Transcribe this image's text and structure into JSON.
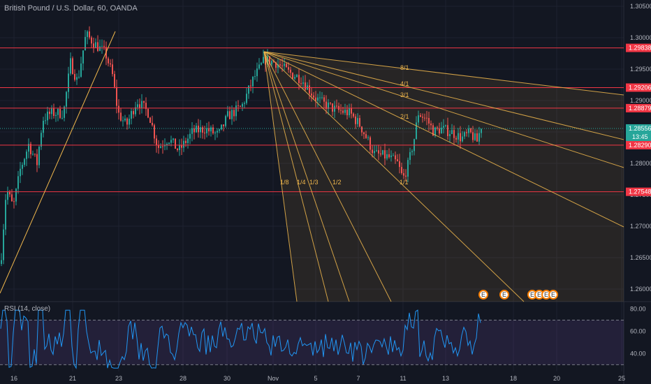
{
  "header": {
    "symbol_title": "British Pound / U.S. Dollar, 60, OANDA"
  },
  "rsi": {
    "title": "RSI (14, close)",
    "levels": [
      {
        "label": "80.00",
        "value": 80
      },
      {
        "label": "60.00",
        "value": 60
      },
      {
        "label": "40.00",
        "value": 40
      }
    ],
    "upper_band": 70,
    "lower_band": 30
  },
  "colors": {
    "background": "#131722",
    "grid": "#1e2230",
    "up_candle": "#26a69a",
    "down_candle": "#ef5350",
    "horizontal_level": "#f23645",
    "fan": "#f0b74c",
    "rsi_line": "#2196f3",
    "rsi_band": "#7e57c2"
  },
  "chart_data": {
    "type": "candlestick",
    "title": "British Pound / U.S. Dollar, 60, OANDA",
    "ylim": [
      1.258,
      1.306
    ],
    "price_ticks": [
      {
        "label": "1.30500",
        "value": 1.305
      },
      {
        "label": "1.30000",
        "value": 1.3
      },
      {
        "label": "1.29500",
        "value": 1.295
      },
      {
        "label": "1.29000",
        "value": 1.29
      },
      {
        "label": "1.28500",
        "value": 1.285
      },
      {
        "label": "1.28000",
        "value": 1.28
      },
      {
        "label": "1.27500",
        "value": 1.275
      },
      {
        "label": "1.27000",
        "value": 1.27
      },
      {
        "label": "1.26500",
        "value": 1.265
      },
      {
        "label": "1.26000",
        "value": 1.26
      }
    ],
    "date_ticks": [
      "16",
      "21",
      "23",
      "28",
      "30",
      "Nov",
      "5",
      "7",
      "11",
      "13",
      "18",
      "20",
      "25"
    ],
    "horizontal_levels": [
      {
        "label": "1.29838",
        "value": 1.29838
      },
      {
        "label": "1.29206",
        "value": 1.29206
      },
      {
        "label": "1.28879",
        "value": 1.28879
      },
      {
        "label": "1.28290",
        "value": 1.2829
      },
      {
        "label": "1.27548",
        "value": 1.27548
      }
    ],
    "last_price": {
      "label": "1.28556",
      "value": 1.28556,
      "countdown": "13:45"
    },
    "gann_fan_labels": [
      "8/1",
      "4/1",
      "3/1",
      "2/1",
      "1/1",
      "1/2",
      "1/3",
      "1/4",
      "1/8"
    ],
    "event_badges": [
      "E",
      "E",
      "E",
      "E",
      "E",
      "E"
    ]
  }
}
